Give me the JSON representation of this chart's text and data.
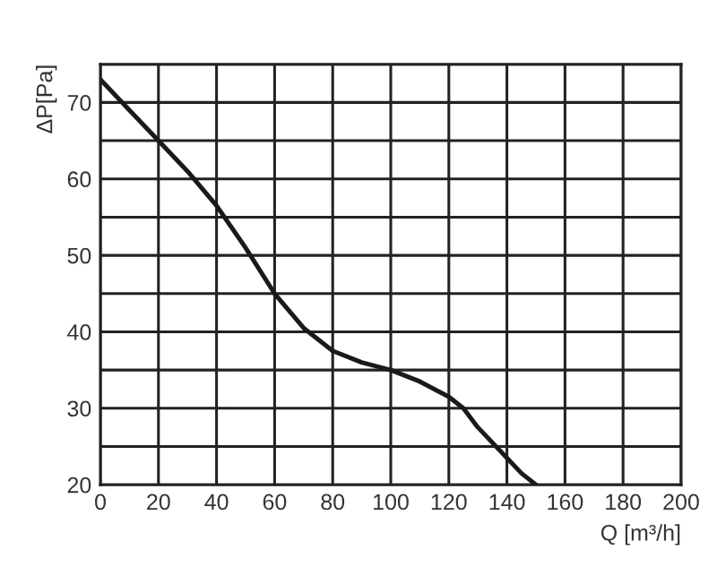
{
  "chart_data": {
    "type": "line",
    "xlabel": "Q [m³/h]",
    "ylabel": "ΔP[Pa]",
    "x": [
      0,
      10,
      20,
      30,
      40,
      50,
      60,
      70,
      80,
      90,
      100,
      110,
      120,
      125,
      130,
      140,
      145,
      150
    ],
    "series": [
      {
        "color": "#1a1a1a",
        "values": [
          73,
          69,
          65,
          61,
          56.5,
          51,
          45,
          40.5,
          37.5,
          36,
          35,
          33.5,
          31.5,
          30,
          27.5,
          23.5,
          21.5,
          20
        ]
      }
    ],
    "xlim": [
      0,
      200
    ],
    "ylim": [
      20,
      75
    ],
    "xticks": [
      0,
      20,
      40,
      60,
      80,
      100,
      120,
      140,
      160,
      180,
      200
    ],
    "yticks": [
      20,
      {
        "value": 25,
        "label": null
      },
      30,
      {
        "value": 35,
        "label": null
      },
      40,
      {
        "value": 45,
        "label": null
      },
      50,
      {
        "value": 55,
        "label": null
      },
      60,
      {
        "value": 65,
        "label": null
      },
      70,
      {
        "value": 75,
        "label": null
      }
    ],
    "grid": true,
    "line_style": "solid",
    "marker": "none",
    "legend": false
  }
}
